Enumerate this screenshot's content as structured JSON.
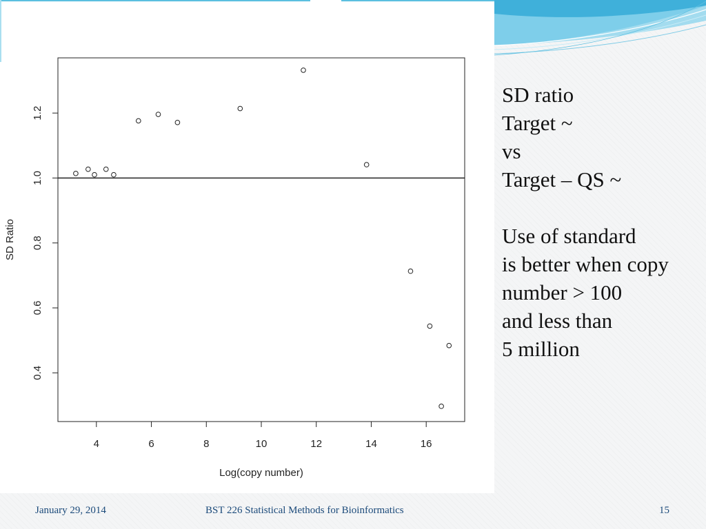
{
  "chart_data": {
    "type": "scatter",
    "title": "",
    "xlabel": "Log(copy number)",
    "ylabel": "SD Ratio",
    "xlim": [
      2.6,
      17.4
    ],
    "ylim": [
      0.25,
      1.37
    ],
    "xticks": [
      4,
      6,
      8,
      10,
      12,
      14,
      16
    ],
    "yticks": [
      0.4,
      0.6,
      0.8,
      1.0,
      1.2
    ],
    "xtick_labels": [
      "4",
      "6",
      "8",
      "10",
      "12",
      "14",
      "16"
    ],
    "ytick_labels": [
      "0.4",
      "0.6",
      "0.8",
      "1.0",
      "1.2"
    ],
    "hline": 1.0,
    "grid": false,
    "marker": "open-circle",
    "points": [
      {
        "x": 3.25,
        "y": 1.014
      },
      {
        "x": 3.7,
        "y": 1.027
      },
      {
        "x": 3.93,
        "y": 1.01
      },
      {
        "x": 4.35,
        "y": 1.027
      },
      {
        "x": 4.63,
        "y": 1.01
      },
      {
        "x": 5.53,
        "y": 1.176
      },
      {
        "x": 6.25,
        "y": 1.196
      },
      {
        "x": 6.95,
        "y": 1.171
      },
      {
        "x": 9.23,
        "y": 1.214
      },
      {
        "x": 11.53,
        "y": 1.332
      },
      {
        "x": 13.83,
        "y": 1.041
      },
      {
        "x": 15.43,
        "y": 0.713
      },
      {
        "x": 16.13,
        "y": 0.544
      },
      {
        "x": 16.55,
        "y": 0.297
      },
      {
        "x": 16.83,
        "y": 0.484
      }
    ]
  },
  "side_text": {
    "lines1": [
      "SD ratio",
      "Target ~",
      "vs",
      "Target – QS ~"
    ],
    "lines2": [
      "Use of standard",
      "is better when copy",
      "number > 100",
      "and less than",
      "5 million"
    ]
  },
  "footer": {
    "date": "January 29, 2014",
    "course": "BST 226 Statistical Methods for Bioinformatics",
    "page": "15"
  },
  "colors": {
    "footer_text": "#1b4a7a",
    "accent_blue": "#5bbfe0"
  }
}
